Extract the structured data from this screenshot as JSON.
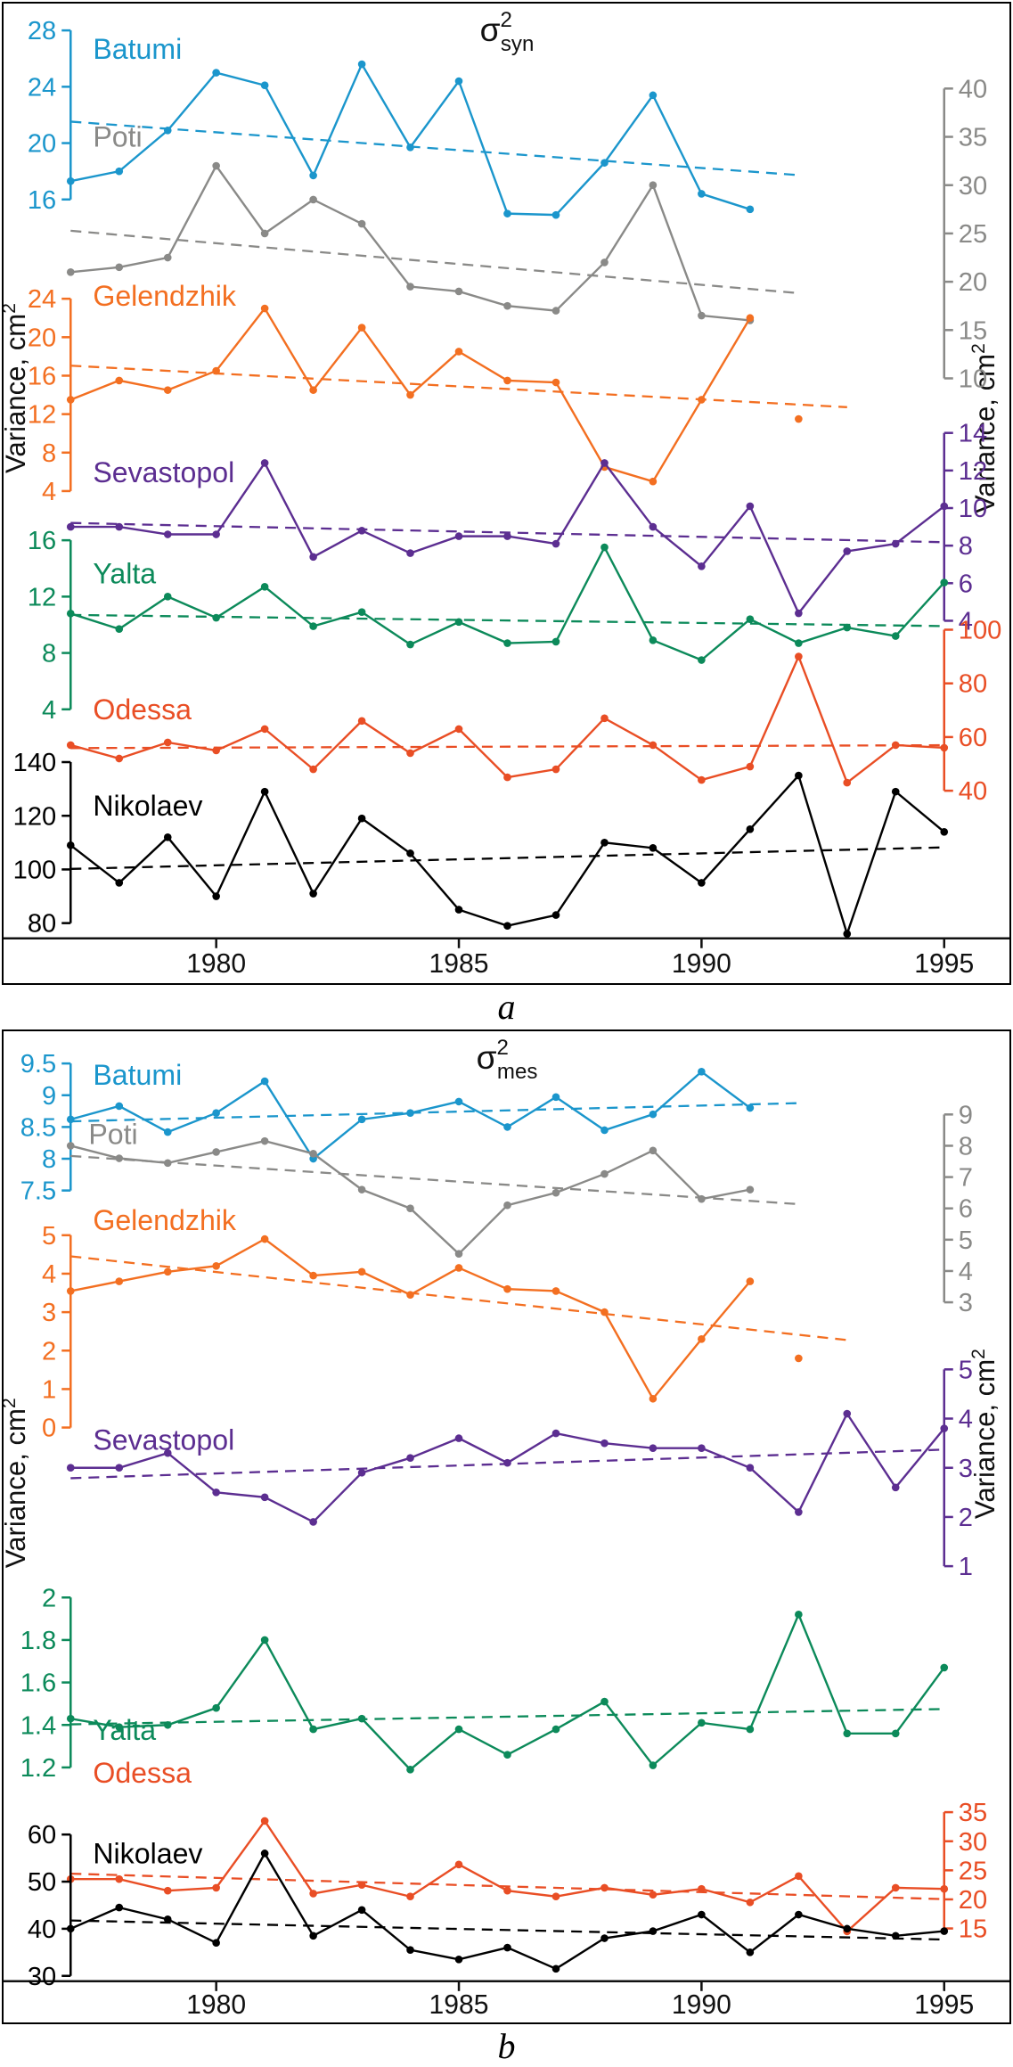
{
  "figure": {
    "caption_a": "a",
    "caption_b": "b"
  },
  "chart_data": [
    {
      "type": "line",
      "panel": "a",
      "title": {
        "base": "σ",
        "sup": "2",
        "sub": "syn"
      },
      "ylabel_left": {
        "text": "Variance, cm",
        "sup": "2"
      },
      "ylabel_right": {
        "text": "Variance, cm",
        "sup": "2"
      },
      "x_label_ticks": [
        1980,
        1985,
        1990,
        1995
      ],
      "years": [
        1977,
        1978,
        1979,
        1980,
        1981,
        1982,
        1983,
        1984,
        1985,
        1986,
        1987,
        1988,
        1989,
        1990,
        1991,
        1992,
        1993,
        1994,
        1995
      ],
      "series": [
        {
          "name": "Batumi",
          "color": "#1b96cc",
          "axis_side": "left",
          "range": [
            16,
            28
          ],
          "ticks": [
            16,
            20,
            24,
            28
          ],
          "values": [
            17.3,
            18,
            20.9,
            25,
            24.1,
            17.7,
            25.6,
            19.7,
            24.4,
            15,
            14.9,
            18.6,
            23.4,
            16.4,
            15.3,
            null,
            null,
            null,
            null
          ]
        },
        {
          "name": "Poti",
          "color": "#8a8a88",
          "axis_side": "right",
          "range": [
            10,
            40
          ],
          "ticks": [
            10,
            15,
            20,
            25,
            30,
            35,
            40
          ],
          "values": [
            21,
            21.5,
            22.5,
            32,
            25,
            28.5,
            26,
            19.5,
            19,
            17.5,
            17,
            22,
            30,
            16.5,
            16,
            null,
            null,
            null,
            null
          ]
        },
        {
          "name": "Gelendzhik",
          "color": "#f36f21",
          "axis_side": "left",
          "range": [
            4,
            24
          ],
          "ticks": [
            4,
            8,
            12,
            16,
            20,
            24
          ],
          "values": [
            13.5,
            15.5,
            14.5,
            16.5,
            23,
            14.5,
            21,
            14,
            18.5,
            15.5,
            15.3,
            6.5,
            5,
            13.5,
            22,
            null,
            null,
            null,
            null
          ],
          "isolated_points": [
            {
              "year": 1992,
              "value": 11.5
            }
          ]
        },
        {
          "name": "Sevastopol",
          "color": "#5c2e91",
          "axis_side": "right",
          "range": [
            4,
            14
          ],
          "ticks": [
            4,
            6,
            8,
            10,
            12,
            14
          ],
          "values": [
            9,
            9,
            8.6,
            8.6,
            12.4,
            7.4,
            8.8,
            7.6,
            8.5,
            8.5,
            8.1,
            12.4,
            9,
            6.9,
            10.1,
            4.4,
            7.7,
            8.1,
            10.1
          ]
        },
        {
          "name": "Yalta",
          "color": "#0c8a5a",
          "axis_side": "left",
          "range": [
            4,
            16
          ],
          "ticks": [
            4,
            8,
            12,
            16
          ],
          "values": [
            10.8,
            9.7,
            12,
            10.5,
            12.7,
            9.9,
            10.9,
            8.6,
            10.2,
            8.7,
            8.8,
            15.5,
            8.9,
            7.5,
            10.4,
            8.7,
            9.8,
            9.2,
            13
          ]
        },
        {
          "name": "Odessa",
          "color": "#e94e25",
          "axis_side": "right",
          "range": [
            40,
            100
          ],
          "ticks": [
            40,
            60,
            80,
            100
          ],
          "values": [
            57,
            52,
            58,
            55,
            63,
            48,
            66,
            54,
            63,
            45,
            48,
            67,
            57,
            44,
            49,
            90,
            43,
            57,
            56
          ]
        },
        {
          "name": "Nikolaev",
          "color": "#000000",
          "axis_side": "left",
          "range": [
            80,
            140
          ],
          "ticks": [
            80,
            100,
            120,
            140
          ],
          "values": [
            109,
            95,
            112,
            90,
            129,
            91,
            119,
            106,
            85,
            79,
            83,
            110,
            108,
            95,
            115,
            135,
            76,
            129,
            114
          ]
        }
      ]
    },
    {
      "type": "line",
      "panel": "b",
      "title": {
        "base": "σ",
        "sup": "2",
        "sub": "mes"
      },
      "ylabel_left": {
        "text": "Variance, cm",
        "sup": "2"
      },
      "ylabel_right": {
        "text": "Variance, cm",
        "sup": "2"
      },
      "x_label_ticks": [
        1980,
        1985,
        1990,
        1995
      ],
      "years": [
        1977,
        1978,
        1979,
        1980,
        1981,
        1982,
        1983,
        1984,
        1985,
        1986,
        1987,
        1988,
        1989,
        1990,
        1991,
        1992,
        1993,
        1994,
        1995
      ],
      "series": [
        {
          "name": "Batumi",
          "color": "#1b96cc",
          "axis_side": "left",
          "range": [
            7.5,
            9.5
          ],
          "ticks": [
            7.5,
            8,
            8.5,
            9,
            9.5
          ],
          "values": [
            8.62,
            8.83,
            8.42,
            8.72,
            9.22,
            8,
            8.62,
            8.72,
            8.9,
            8.5,
            8.97,
            8.45,
            8.7,
            9.37,
            8.8,
            null,
            null,
            null,
            null
          ]
        },
        {
          "name": "Poti",
          "color": "#8a8a88",
          "axis_side": "right",
          "range": [
            3,
            9
          ],
          "ticks": [
            3,
            4,
            5,
            6,
            7,
            8,
            9
          ],
          "values": [
            8,
            7.6,
            7.45,
            7.8,
            8.15,
            7.75,
            6.6,
            6,
            4.55,
            6.1,
            6.5,
            7.1,
            7.85,
            6.3,
            6.6,
            null,
            null,
            null,
            null
          ]
        },
        {
          "name": "Gelendzhik",
          "color": "#f36f21",
          "axis_side": "left",
          "range": [
            0,
            5
          ],
          "ticks": [
            0,
            1,
            2,
            3,
            4,
            5
          ],
          "values": [
            3.55,
            3.8,
            4.05,
            4.2,
            4.9,
            3.95,
            4.05,
            3.45,
            4.15,
            3.6,
            3.55,
            3,
            0.75,
            2.3,
            3.8,
            null,
            null,
            null,
            null
          ],
          "isolated_points": [
            {
              "year": 1992,
              "value": 1.8
            }
          ]
        },
        {
          "name": "Sevastopol",
          "color": "#5c2e91",
          "axis_side": "right",
          "range": [
            1,
            5
          ],
          "ticks": [
            1,
            2,
            3,
            4,
            5
          ],
          "values": [
            3,
            3,
            3.3,
            2.5,
            2.4,
            1.9,
            2.9,
            3.2,
            3.6,
            3.1,
            3.7,
            3.5,
            3.4,
            3.4,
            3,
            2.1,
            4.1,
            2.6,
            3.8
          ]
        },
        {
          "name": "Yalta",
          "color": "#0c8a5a",
          "axis_side": "left",
          "range": [
            1.2,
            2
          ],
          "ticks": [
            1.2,
            1.4,
            1.6,
            1.8,
            2
          ],
          "values": [
            1.43,
            1.39,
            1.4,
            1.48,
            1.8,
            1.38,
            1.43,
            1.19,
            1.38,
            1.26,
            1.38,
            1.51,
            1.21,
            1.41,
            1.38,
            1.92,
            1.36,
            1.36,
            1.67
          ]
        },
        {
          "name": "Odessa",
          "color": "#e94e25",
          "axis_side": "right",
          "range": [
            15,
            35
          ],
          "ticks": [
            15,
            20,
            25,
            30,
            35
          ],
          "values": [
            23.5,
            23.5,
            21.5,
            22,
            33.5,
            21,
            22.5,
            20.5,
            26,
            21.5,
            20.5,
            22,
            20.8,
            21.8,
            19.5,
            24,
            14.5,
            22,
            21.8
          ]
        },
        {
          "name": "Nikolaev",
          "color": "#000000",
          "axis_side": "left",
          "range": [
            30,
            60
          ],
          "ticks": [
            30,
            40,
            50,
            60
          ],
          "values": [
            40,
            44.5,
            42,
            37,
            56,
            38.5,
            44,
            35.5,
            33.5,
            36,
            31.5,
            38,
            39.5,
            43,
            35,
            43,
            40,
            38.5,
            39.5
          ]
        }
      ]
    }
  ]
}
